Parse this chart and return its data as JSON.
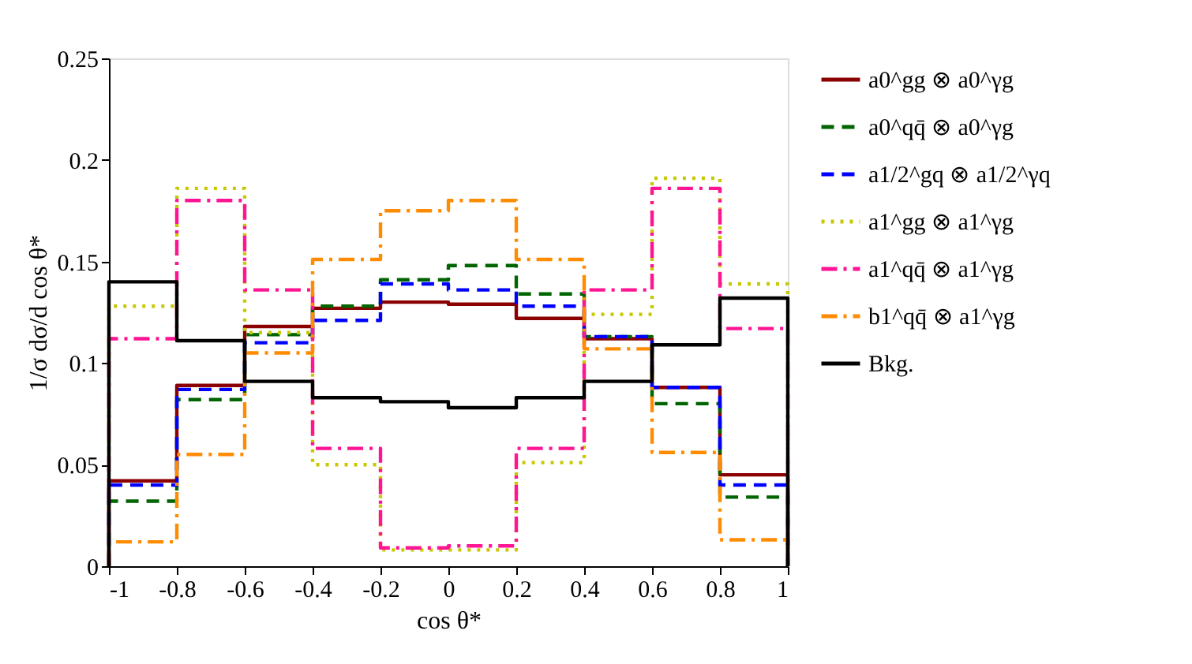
{
  "chart_data": {
    "type": "histogram",
    "xlabel": "cos θ*",
    "ylabel": "1/σ dσ/d cos θ*",
    "bins": [
      -1,
      -0.8,
      -0.6,
      -0.4,
      -0.2,
      0,
      0.2,
      0.4,
      0.6,
      0.8,
      1
    ],
    "xlim": [
      -1,
      1
    ],
    "xticks": [
      -1,
      -0.8,
      -0.6,
      -0.4,
      -0.2,
      0,
      0.2,
      0.4,
      0.6,
      0.8,
      1
    ],
    "ylim": [
      0,
      0.25
    ],
    "yticks": [
      0,
      0.05,
      0.1,
      0.15,
      0.2,
      0.25
    ],
    "legend": "right",
    "series": [
      {
        "name": "a0^gg ⊗ a0^γg",
        "color": "#8b0000",
        "line_style": "solid",
        "values": [
          0.042,
          0.089,
          0.118,
          0.127,
          0.13,
          0.129,
          0.122,
          0.112,
          0.088,
          0.045
        ]
      },
      {
        "name": "a0^qq̄ ⊗ a0^γg",
        "color": "#006400",
        "line_style": "dashed",
        "values": [
          0.032,
          0.082,
          0.114,
          0.128,
          0.141,
          0.148,
          0.134,
          0.113,
          0.08,
          0.034
        ]
      },
      {
        "name": "a1/2^gq ⊗ a1/2^γq",
        "color": "#0000ff",
        "line_style": "dashed",
        "values": [
          0.04,
          0.087,
          0.11,
          0.121,
          0.139,
          0.136,
          0.128,
          0.113,
          0.088,
          0.04
        ]
      },
      {
        "name": "a1^gg ⊗ a1^γg",
        "color": "#c8c800",
        "line_style": "dotted",
        "values": [
          0.128,
          0.186,
          0.115,
          0.05,
          0.008,
          0.008,
          0.051,
          0.124,
          0.191,
          0.139
        ]
      },
      {
        "name": "a1^qq̄ ⊗ a1^γg",
        "color": "#ff1493",
        "line_style": "dashdot",
        "values": [
          0.112,
          0.18,
          0.136,
          0.058,
          0.009,
          0.01,
          0.058,
          0.136,
          0.186,
          0.117
        ]
      },
      {
        "name": "b1^qq̄ ⊗ a1^γg",
        "color": "#ff8c00",
        "line_style": "dashdot",
        "values": [
          0.012,
          0.055,
          0.105,
          0.151,
          0.175,
          0.18,
          0.151,
          0.107,
          0.056,
          0.013
        ]
      },
      {
        "name": "Bkg.",
        "color": "#000000",
        "line_style": "solid",
        "values": [
          0.14,
          0.111,
          0.091,
          0.083,
          0.081,
          0.078,
          0.083,
          0.091,
          0.109,
          0.132
        ]
      }
    ]
  }
}
